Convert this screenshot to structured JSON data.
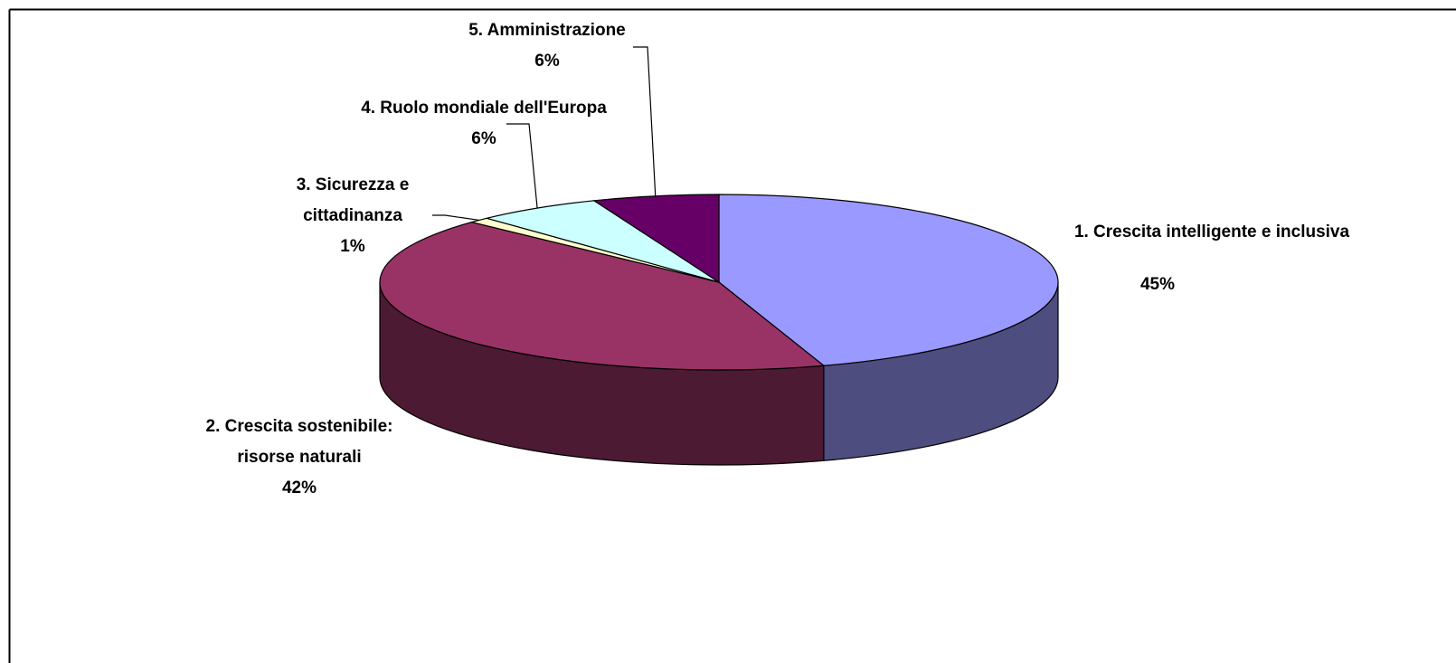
{
  "chart_data": {
    "type": "pie",
    "categories": [
      "1. Crescita intelligente e inclusiva",
      "2. Crescita sostenibile: risorse naturali",
      "3. Sicurezza e cittadinanza",
      "4. Ruolo mondiale dell'Europa",
      "5. Amministrazione"
    ],
    "values": [
      45,
      42,
      1,
      6,
      6
    ],
    "value_labels": [
      "45%",
      "42%",
      "1%",
      "6%",
      "6%"
    ],
    "colors": [
      "#9999ff",
      "#993366",
      "#ffffcc",
      "#ccffff",
      "#660066"
    ],
    "three_d": true
  }
}
